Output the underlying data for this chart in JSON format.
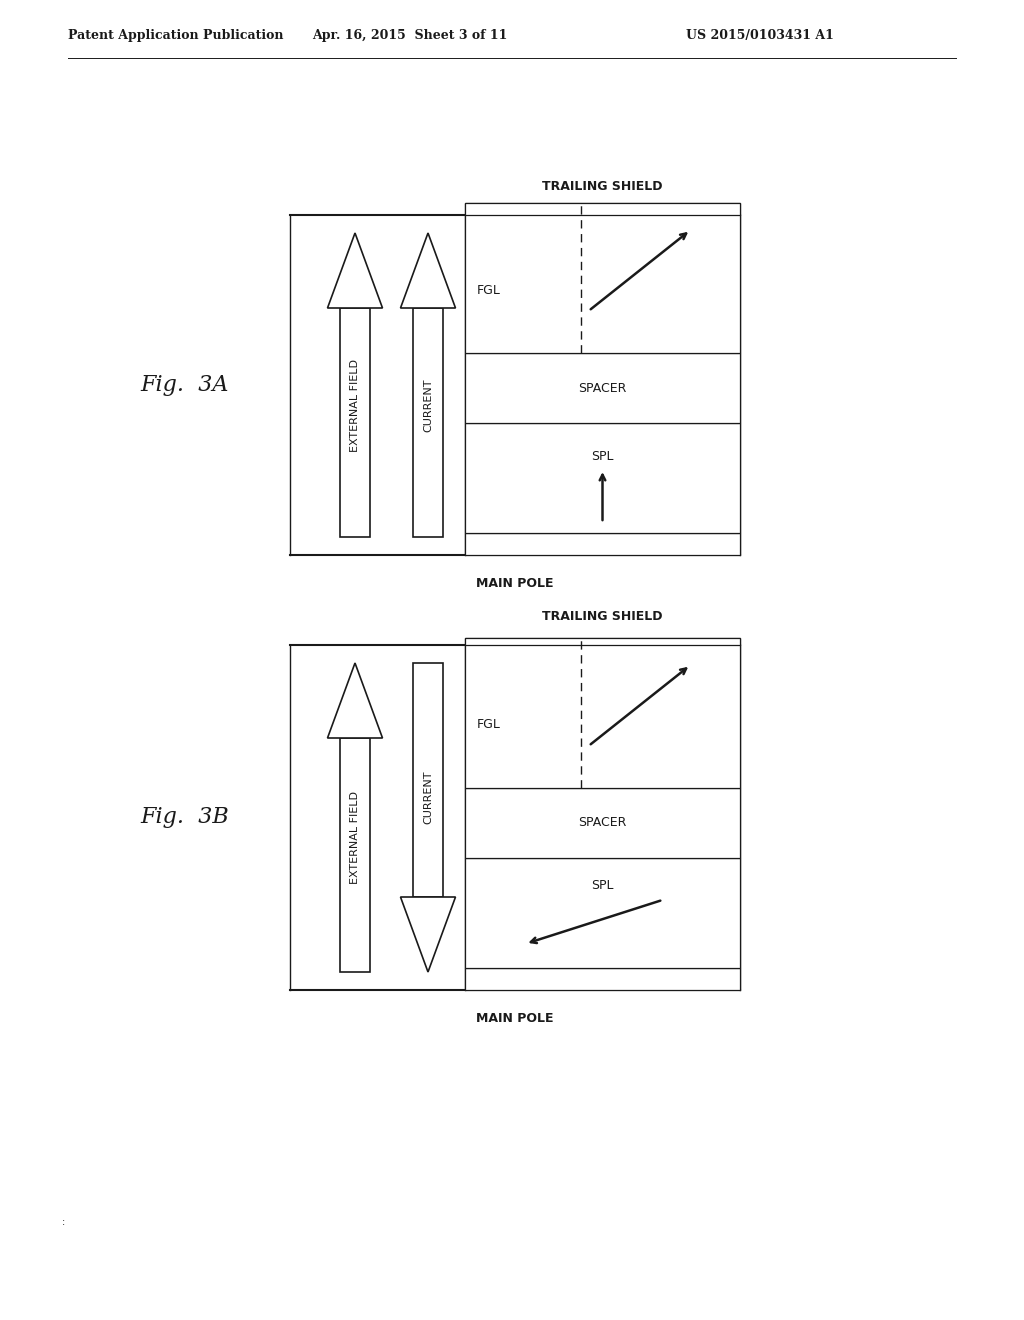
{
  "header_left": "Patent Application Publication",
  "header_mid": "Apr. 16, 2015  Sheet 3 of 11",
  "header_right": "US 2015/0103431 A1",
  "fig3a_label": "Fig.  3A",
  "fig3b_label": "Fig.  3B",
  "trailing_shield_label": "TRAILING SHIELD",
  "main_pole_label": "MAIN POLE",
  "fgl_label": "FGL",
  "spacer_label": "SPACER",
  "spl_label": "SPL",
  "ext_field_label": "EXTERNAL FIELD",
  "current_label": "CURRENT",
  "bg_color": "#ffffff",
  "line_color": "#1a1a1a",
  "header_fontsize": 9,
  "label_fontsize": 9,
  "figlabel_fontsize": 16,
  "layer_fontsize": 9,
  "arrow_fontsize": 8
}
